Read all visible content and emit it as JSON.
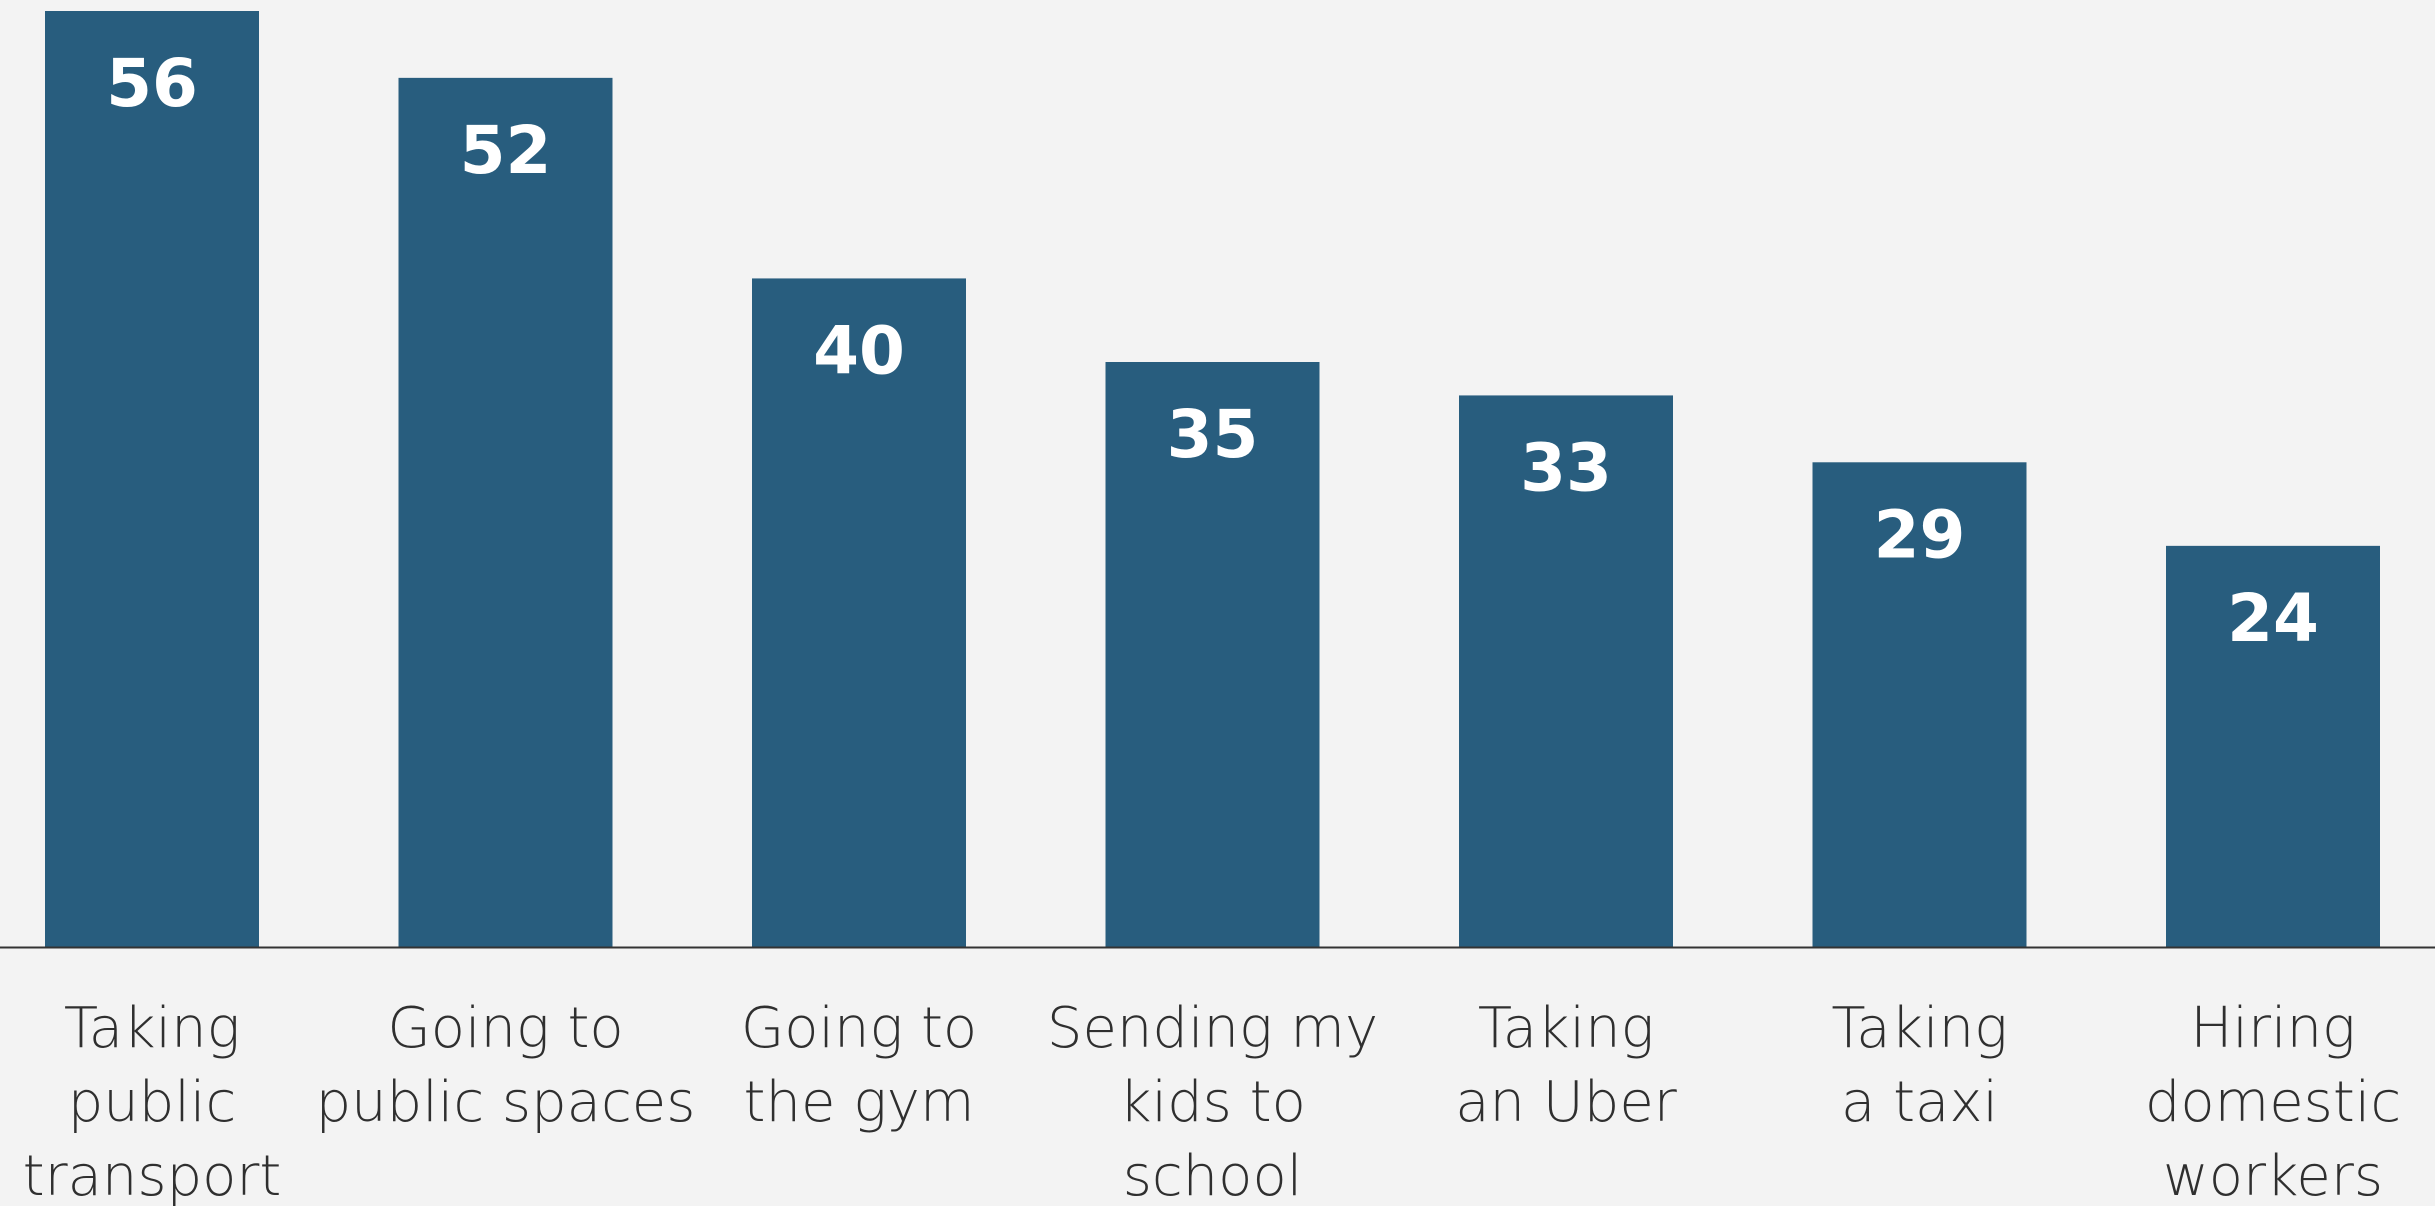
{
  "chart_data": {
    "type": "bar",
    "title": "",
    "xlabel": "",
    "ylabel": "",
    "categories": [
      [
        "Taking",
        "public",
        "transport"
      ],
      [
        "Going to",
        "public spaces"
      ],
      [
        "Going to",
        "the gym"
      ],
      [
        "Sending my",
        "kids to",
        "school"
      ],
      [
        "Taking",
        "an Uber"
      ],
      [
        "Taking",
        "a taxi"
      ],
      [
        "Hiring",
        "domestic",
        "workers"
      ]
    ],
    "values": [
      56,
      52,
      40,
      35,
      33,
      29,
      24
    ],
    "ylim": [
      0,
      56
    ],
    "grid": false,
    "legend": "none",
    "colors": {
      "bar": "#285d7e",
      "value_label": "#ffffff",
      "axis": "#333333",
      "category_label": "#2f2f2f",
      "background": "#f3f3f3"
    }
  }
}
